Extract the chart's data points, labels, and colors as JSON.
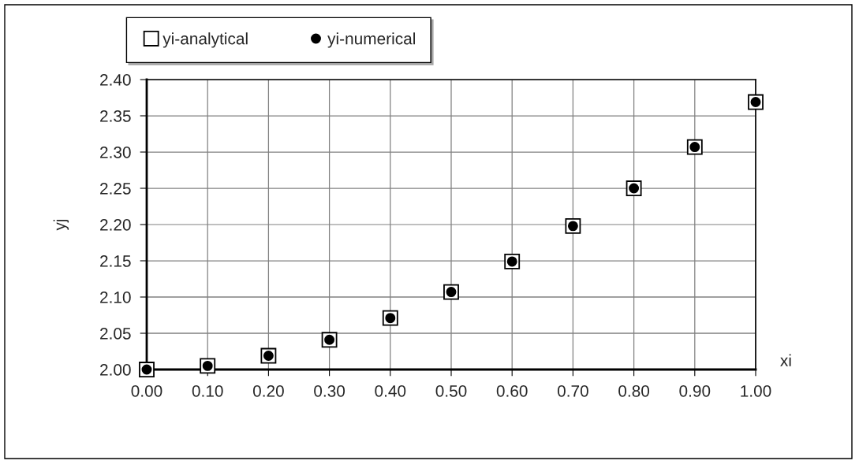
{
  "chart_data": {
    "type": "scatter",
    "xlabel": "xi",
    "ylabel": "yj",
    "x": [
      0.0,
      0.1,
      0.2,
      0.3,
      0.4,
      0.5,
      0.6,
      0.7,
      0.8,
      0.9,
      1.0
    ],
    "series": [
      {
        "name": "yi-analytical",
        "color": "#ffffff",
        "marker": "square",
        "values": [
          2.0,
          2.005,
          2.019,
          2.041,
          2.071,
          2.107,
          2.149,
          2.198,
          2.25,
          2.307,
          2.369
        ]
      },
      {
        "name": "yi-numerical",
        "color": "#000000",
        "marker": "circle",
        "values": [
          2.0,
          2.005,
          2.019,
          2.041,
          2.071,
          2.107,
          2.149,
          2.198,
          2.25,
          2.307,
          2.369
        ]
      }
    ],
    "xlim": [
      0,
      1
    ],
    "xticks": [
      {
        "value": 0,
        "label": "0.00"
      },
      {
        "value": 0.1,
        "label": "0.10"
      },
      {
        "value": 0.2,
        "label": "0.20"
      },
      {
        "value": 0.3,
        "label": "0.30"
      },
      {
        "value": 0.4,
        "label": "0.40"
      },
      {
        "value": 0.5,
        "label": "0.50"
      },
      {
        "value": 0.6,
        "label": "0.60"
      },
      {
        "value": 0.7,
        "label": "0.70"
      },
      {
        "value": 0.8,
        "label": "0.80"
      },
      {
        "value": 0.9,
        "label": "0.90"
      },
      {
        "value": 1.0,
        "label": "1.00"
      }
    ],
    "ylim": [
      2.0,
      2.4
    ],
    "yticks": [
      {
        "value": 2.0,
        "label": "2.00"
      },
      {
        "value": 2.05,
        "label": "2.05"
      },
      {
        "value": 2.1,
        "label": "2.10"
      },
      {
        "value": 2.15,
        "label": "2.15"
      },
      {
        "value": 2.2,
        "label": "2.20"
      },
      {
        "value": 2.25,
        "label": "2.25"
      },
      {
        "value": 2.3,
        "label": "2.30"
      },
      {
        "value": 2.35,
        "label": "2.35"
      },
      {
        "value": 2.4,
        "label": "2.40"
      }
    ],
    "grid": true,
    "legend": "top"
  }
}
